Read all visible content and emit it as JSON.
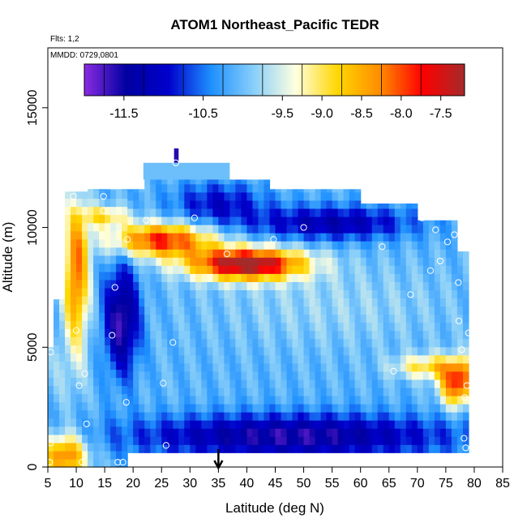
{
  "chart_data": {
    "type": "heatmap",
    "title": "ATOM1 Northeast_Pacific TEDR",
    "annotations": [
      "Flts: 1,2",
      "MMDD: 0729,0801"
    ],
    "xlabel": "Latitude (deg N)",
    "ylabel": "Altitude (m)",
    "xlim": [
      5,
      85
    ],
    "ylim": [
      0,
      17500
    ],
    "x_ticks": [
      "5",
      "10",
      "15",
      "20",
      "25",
      "30",
      "35",
      "40",
      "45",
      "50",
      "55",
      "60",
      "65",
      "70",
      "75",
      "80",
      "85"
    ],
    "y_ticks": [
      "0",
      "5000",
      "10000",
      "15000"
    ],
    "colorbar": {
      "range": [
        -12.0,
        -7.2
      ],
      "tick_labels": [
        "-11.5",
        "-10.5",
        "-9.5",
        "-9.0",
        "-8.5",
        "-8.0",
        "-7.5"
      ],
      "tick_values": [
        -11.5,
        -10.5,
        -9.5,
        -9.0,
        -8.5,
        -8.0,
        -7.5
      ],
      "colors": [
        "#8a2be2",
        "#0000a0",
        "#0000cd",
        "#1e90ff",
        "#87cefa",
        "#ffffe0",
        "#ffd700",
        "#ff8c00",
        "#ff0000",
        "#a52a2a"
      ]
    },
    "arrow_marker_x": 35,
    "points": [
      {
        "x": 5.3,
        "y": 200
      },
      {
        "x": 5.5,
        "y": 1000
      },
      {
        "x": 5.5,
        "y": 4800
      },
      {
        "x": 9.5,
        "y": 11300
      },
      {
        "x": 10.0,
        "y": 5700
      },
      {
        "x": 10.5,
        "y": 3400
      },
      {
        "x": 11.0,
        "y": 200
      },
      {
        "x": 11.5,
        "y": 3900
      },
      {
        "x": 11.8,
        "y": 1800
      },
      {
        "x": 14.8,
        "y": 10700
      },
      {
        "x": 14.8,
        "y": 11300
      },
      {
        "x": 16.3,
        "y": 5500
      },
      {
        "x": 16.8,
        "y": 7500
      },
      {
        "x": 17.3,
        "y": 200
      },
      {
        "x": 18.2,
        "y": 200
      },
      {
        "x": 18.8,
        "y": 2700
      },
      {
        "x": 19.0,
        "y": 9500
      },
      {
        "x": 22.3,
        "y": 10300
      },
      {
        "x": 25.3,
        "y": 3500
      },
      {
        "x": 25.8,
        "y": 900
      },
      {
        "x": 27.0,
        "y": 5200
      },
      {
        "x": 27.5,
        "y": 12700
      },
      {
        "x": 30.8,
        "y": 10400
      },
      {
        "x": 36.5,
        "y": 8900
      },
      {
        "x": 44.7,
        "y": 9500
      },
      {
        "x": 50.0,
        "y": 10000
      },
      {
        "x": 63.8,
        "y": 9200
      },
      {
        "x": 65.8,
        "y": 4000
      },
      {
        "x": 68.8,
        "y": 7200
      },
      {
        "x": 70.8,
        "y": 10400
      },
      {
        "x": 72.3,
        "y": 8200
      },
      {
        "x": 73.2,
        "y": 9900
      },
      {
        "x": 74.0,
        "y": 8600
      },
      {
        "x": 75.3,
        "y": 9400
      },
      {
        "x": 76.5,
        "y": 9700
      },
      {
        "x": 77.2,
        "y": 7700
      },
      {
        "x": 77.3,
        "y": 6100
      },
      {
        "x": 77.8,
        "y": 4900
      },
      {
        "x": 78.2,
        "y": 1200
      },
      {
        "x": 78.3,
        "y": 2900
      },
      {
        "x": 78.5,
        "y": 800
      },
      {
        "x": 78.7,
        "y": 3400
      },
      {
        "x": 79.0,
        "y": 5600
      }
    ]
  }
}
